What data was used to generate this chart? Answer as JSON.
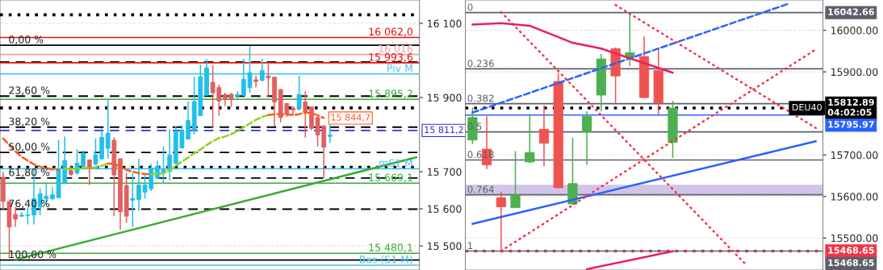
{
  "chart_data": [
    {
      "type": "candlestick",
      "categories": [
        null,
        null,
        null,
        null,
        null,
        null,
        null,
        null,
        null,
        null,
        null,
        null,
        null,
        null,
        null,
        null,
        null,
        null,
        null,
        null,
        null,
        null,
        null,
        null,
        null,
        null,
        null,
        null,
        null,
        null,
        null,
        null,
        null,
        null,
        null,
        null,
        null,
        null,
        null,
        null,
        null,
        null,
        null,
        null,
        null,
        null,
        null,
        null,
        null,
        null,
        null,
        null,
        null,
        null,
        null,
        null,
        null,
        null,
        null,
        null,
        null,
        null,
        null,
        null,
        null,
        null,
        null,
        null
      ],
      "ohlc": [
        [
          15685,
          15699,
          15598,
          15620
        ],
        [
          15620,
          15620,
          15467,
          15551
        ],
        [
          15585,
          15605,
          15551,
          15572
        ],
        [
          15580,
          15591,
          15578,
          15583
        ],
        [
          15582,
          15605,
          15558,
          15584
        ],
        [
          15583,
          15706,
          15558,
          15627
        ],
        [
          15605,
          15656,
          15583,
          15641
        ],
        [
          15627,
          15667,
          15612,
          15634
        ],
        [
          15627,
          15659,
          15623,
          15638
        ],
        [
          15630,
          15786,
          15630,
          15706
        ],
        [
          15670,
          15795,
          15667,
          15730
        ],
        [
          15703,
          15714,
          15688,
          15693
        ],
        [
          15697,
          15761,
          15691,
          15723
        ],
        [
          15714,
          15757,
          15710,
          15750
        ],
        [
          15732,
          15732,
          15664,
          15708
        ],
        [
          15721,
          15790,
          15717,
          15746
        ],
        [
          15735,
          15817,
          15732,
          15793
        ],
        [
          15763,
          15893,
          15735,
          15804
        ],
        [
          15785,
          15793,
          15580,
          15691
        ],
        [
          15735,
          15735,
          15543,
          15592
        ],
        [
          15663,
          15696,
          15562,
          15580
        ],
        [
          15623,
          15696,
          15551,
          15628
        ],
        [
          15625,
          15735,
          15594,
          15664
        ],
        [
          15645,
          15696,
          15627,
          15664
        ],
        [
          15654,
          15721,
          15648,
          15710
        ],
        [
          15683,
          15730,
          15681,
          15714
        ],
        [
          15696,
          15768,
          15667,
          15706
        ],
        [
          15701,
          15815,
          15677,
          15745
        ],
        [
          15723,
          15822,
          15721,
          15810
        ],
        [
          15764,
          15826,
          15763,
          15812
        ],
        [
          15788,
          15889,
          15786,
          15838
        ],
        [
          15812,
          15956,
          15801,
          15889
        ],
        [
          15851,
          15989,
          15851,
          15956
        ],
        [
          15906,
          16004,
          15904,
          15980
        ],
        [
          15941,
          15987,
          15817,
          15913
        ],
        [
          15927,
          15935,
          15851,
          15891
        ],
        [
          15908,
          15913,
          15877,
          15896
        ],
        [
          15909,
          15913,
          15875,
          15896
        ],
        [
          15904,
          15918,
          15896,
          15908
        ],
        [
          15906,
          16005,
          15904,
          15949
        ],
        [
          15927,
          16040,
          15913,
          15967
        ],
        [
          15948,
          15959,
          15927,
          15943
        ],
        [
          15946,
          16004,
          15944,
          15973
        ],
        [
          15958,
          15995,
          15902,
          15953
        ],
        [
          15955,
          15955,
          15822,
          15888
        ],
        [
          15922,
          15922,
          15833,
          15846
        ],
        [
          15884,
          15884,
          15848,
          15855
        ],
        [
          15872,
          15877,
          15851,
          15866
        ],
        [
          15870,
          15959,
          15867,
          15908
        ],
        [
          15888,
          15917,
          15792,
          15860
        ],
        [
          15875,
          15875,
          15812,
          15817
        ],
        [
          15846,
          15848,
          15768,
          15799
        ],
        [
          15824,
          15824,
          15683,
          15766
        ],
        [
          15795,
          15828,
          15778,
          15799
        ],
        null,
        null,
        null,
        null,
        null,
        null,
        null,
        null,
        null,
        null,
        null,
        null,
        null,
        null
      ],
      "colors": [
        "#e06060",
        "#e06060",
        "#e06060",
        "#22bfe8",
        "#22bfe8",
        "#22bfe8",
        "#22bfe8",
        "#22bfe8",
        "#22bfe8",
        "#22bfe8",
        "#22bfe8",
        "#e06060",
        "#22bfe8",
        "#22bfe8",
        "#e06060",
        "#22bfe8",
        "#22bfe8",
        "#22bfe8",
        "#e06060",
        "#e06060",
        "#e06060",
        "#22bfe8",
        "#22bfe8",
        "#22bfe8",
        "#22bfe8",
        "#22bfe8",
        "#22bfe8",
        "#22bfe8",
        "#22bfe8",
        "#22bfe8",
        "#22bfe8",
        "#22bfe8",
        "#22bfe8",
        "#22bfe8",
        "#e06060",
        "#e06060",
        "#e06060",
        "#e06060",
        "#22bfe8",
        "#22bfe8",
        "#22bfe8",
        "#e06060",
        "#22bfe8",
        "#e06060",
        "#e06060",
        "#e06060",
        "#e06060",
        "#e06060",
        "#22bfe8",
        "#e06060",
        "#e06060",
        "#e06060",
        "#e06060",
        "#22bfe8",
        null,
        null,
        null,
        null,
        null,
        null,
        null,
        null,
        null,
        null,
        null,
        null,
        null,
        null
      ],
      "series": [
        {
          "type": "line",
          "color": "#ff5a1f",
          "line_style": "dashed",
          "values": [
            15790,
            15772,
            15755,
            15740,
            15730,
            15720,
            15714,
            15710,
            15706,
            15705,
            null,
            null,
            null,
            null,
            null,
            null,
            null,
            null,
            null,
            null,
            null,
            null,
            null,
            null,
            null,
            null,
            null,
            null,
            null,
            null,
            null,
            null,
            null,
            null,
            null,
            null,
            null,
            null,
            null,
            null,
            null,
            null,
            null,
            null,
            null,
            null,
            null,
            null,
            null,
            null,
            null,
            null,
            null,
            null,
            null,
            null,
            null,
            null,
            null,
            null,
            null,
            null,
            null,
            null,
            null,
            null,
            null,
            null
          ]
        },
        {
          "type": "line",
          "color": "#8fd11f",
          "line_style": "dashed",
          "values": [
            null,
            null,
            null,
            null,
            null,
            null,
            null,
            null,
            null,
            null,
            15707,
            15708,
            15709,
            15710,
            15710,
            15712,
            15716,
            15722,
            null,
            null,
            null,
            null,
            null,
            null,
            null,
            null,
            null,
            null,
            null,
            null,
            null,
            null,
            null,
            null,
            null,
            null,
            null,
            null,
            null,
            null,
            null,
            null,
            null,
            null,
            null,
            null,
            null,
            null,
            null,
            null,
            null,
            null,
            null,
            null,
            null,
            null,
            null,
            null,
            null,
            null,
            null,
            null,
            null,
            null,
            null,
            null,
            null,
            null
          ]
        },
        {
          "type": "line",
          "color": "#ff5a1f",
          "line_style": "dashed",
          "values": [
            null,
            null,
            null,
            null,
            null,
            null,
            null,
            null,
            null,
            null,
            null,
            null,
            null,
            null,
            null,
            null,
            null,
            15722,
            15722,
            15715,
            15705,
            15700,
            15696,
            15694,
            15693,
            null,
            null,
            null,
            null,
            null,
            null,
            null,
            null,
            null,
            null,
            null,
            null,
            null,
            null,
            null,
            null,
            null,
            null,
            null,
            null,
            null,
            null,
            null,
            null,
            null,
            null,
            null,
            null,
            null,
            null,
            null,
            null,
            null,
            null,
            null,
            null,
            null,
            null,
            null,
            null,
            null,
            null,
            null
          ]
        },
        {
          "type": "line",
          "color": "#8fd11f",
          "line_style": "dashed",
          "values": [
            null,
            null,
            null,
            null,
            null,
            null,
            null,
            null,
            null,
            null,
            null,
            null,
            null,
            null,
            null,
            null,
            null,
            null,
            null,
            null,
            null,
            null,
            null,
            null,
            15693,
            15694,
            15696,
            15705,
            15716,
            15728,
            15738,
            15750,
            15760,
            15772,
            15782,
            15791,
            15795,
            15801,
            15810,
            15820,
            15830,
            15840,
            15848,
            15853,
            null,
            null,
            null,
            null,
            null,
            null,
            null,
            null,
            null,
            null,
            null,
            null,
            null,
            null,
            null,
            null,
            null,
            null,
            null,
            null,
            null,
            null,
            null,
            null
          ]
        },
        {
          "type": "line",
          "color": "#ff5a1f",
          "line_style": "dashed",
          "values": [
            null,
            null,
            null,
            null,
            null,
            null,
            null,
            null,
            null,
            null,
            null,
            null,
            null,
            null,
            null,
            null,
            null,
            null,
            null,
            null,
            null,
            null,
            null,
            null,
            null,
            null,
            null,
            null,
            null,
            null,
            null,
            null,
            null,
            null,
            null,
            null,
            null,
            null,
            null,
            null,
            null,
            null,
            null,
            15853,
            15855,
            15855,
            15854,
            15853,
            15855,
            15860,
            15858,
            15852,
            15844.7,
            null,
            null,
            null,
            null,
            null,
            null,
            null,
            null,
            null,
            null,
            null,
            null,
            null,
            null,
            null
          ],
          "value_labels": [
            null,
            null,
            null,
            null,
            null,
            null,
            null,
            null,
            null,
            null,
            null,
            null,
            null,
            null,
            null,
            null,
            null,
            null,
            null,
            null,
            null,
            null,
            null,
            null,
            null,
            null,
            null,
            null,
            null,
            null,
            null,
            null,
            null,
            null,
            null,
            null,
            null,
            null,
            null,
            null,
            null,
            null,
            null,
            null,
            null,
            null,
            null,
            null,
            null,
            null,
            null,
            null,
            "15 844,7",
            null,
            null,
            null,
            null,
            null,
            null,
            null,
            null,
            null,
            null,
            null,
            null,
            null,
            null,
            null
          ]
        },
        {
          "type": "line",
          "color": "#3aaa35",
          "line_style": "solid",
          "values": [
            null,
            null,
            15463,
            null,
            null,
            null,
            null,
            null,
            null,
            null,
            null,
            null,
            null,
            null,
            null,
            null,
            null,
            null,
            null,
            null,
            null,
            null,
            null,
            null,
            null,
            null,
            null,
            null,
            null,
            null,
            null,
            null,
            null,
            null,
            null,
            null,
            null,
            null,
            null,
            null,
            null,
            null,
            null,
            null,
            null,
            null,
            null,
            null,
            null,
            null,
            null,
            null,
            null,
            null,
            null,
            null,
            null,
            null,
            null,
            null,
            null,
            null,
            null,
            null,
            null,
            null,
            null,
            15739
          ]
        }
      ],
      "ref_lines": [
        {
          "axis": "y",
          "value": 16123,
          "color": "#000000",
          "line_style": "dotted"
        },
        {
          "axis": "y",
          "value": 16062,
          "label": "16 062,0",
          "color": "#e81010",
          "line_style": "solid"
        },
        {
          "axis": "y",
          "value": 16041,
          "color": "#000000",
          "line_style": "solid"
        },
        {
          "axis": "y",
          "value": 16016,
          "label": "16 016",
          "color": "#f0a0a0",
          "line_style": "solid"
        },
        {
          "axis": "y",
          "value": 15996,
          "color": "#000000",
          "line_style": "dashed"
        },
        {
          "axis": "y",
          "value": 15993.6,
          "label": "15 993,6",
          "color": "#e81010",
          "line_style": "solid"
        },
        {
          "axis": "y",
          "value": 15964,
          "label": "Piv M",
          "color": "#4cc3f0",
          "line_style": "solid"
        },
        {
          "axis": "y",
          "value": 15904,
          "color": "#000000",
          "line_style": "dashed"
        },
        {
          "axis": "y",
          "value": 15895.2,
          "label": "15 895,2",
          "color": "#3aaa35",
          "line_style": "solid"
        },
        {
          "axis": "y",
          "value": 15872,
          "color": "#000000",
          "line_style": "dotted"
        },
        {
          "axis": "y",
          "value": 15820,
          "color": "#000000",
          "line_style": "dashed"
        },
        {
          "axis": "y",
          "value": 15811.2,
          "label": "15 811,2",
          "color": "#3030d0",
          "line_style": "dashed"
        },
        {
          "axis": "y",
          "value": 15752,
          "color": "#000000",
          "line_style": "dashed"
        },
        {
          "axis": "y",
          "value": 15712,
          "color": "#000000",
          "line_style": "dotted"
        },
        {
          "axis": "y",
          "value": 15708,
          "label": "mS1 M",
          "color": "#4cc3f0",
          "line_style": "solid"
        },
        {
          "axis": "y",
          "value": 15683,
          "color": "#000000",
          "line_style": "dashed"
        },
        {
          "axis": "y",
          "value": 15669.1,
          "label": "15 669,1",
          "color": "#3aaa35",
          "line_style": "solid"
        },
        {
          "axis": "y",
          "value": 15599,
          "color": "#000000",
          "line_style": "dashed"
        },
        {
          "axis": "y",
          "value": 15480.1,
          "label": "15 480,1",
          "color": "#3aaa35",
          "line_style": "solid"
        },
        {
          "axis": "y",
          "value": 15462,
          "color": "#000000",
          "line_style": "solid"
        },
        {
          "axis": "y",
          "value": 15448,
          "label": "Bas (S1 M)",
          "color": "#4cc3f0",
          "line_style": "solid"
        }
      ],
      "annotations": [
        {
          "text": "0,00 %",
          "y": 16041
        },
        {
          "text": "23,60 %",
          "y": 15904
        },
        {
          "text": "38,20 %",
          "y": 15820
        },
        {
          "text": "50,00 %",
          "y": 15752
        },
        {
          "text": "61,80 %",
          "y": 15683
        },
        {
          "text": "76,40 %",
          "y": 15599
        },
        {
          "text": "100,00 %",
          "y": 15462
        }
      ],
      "ylim": [
        15435,
        16163
      ],
      "yticks": [
        {
          "value": 15500,
          "label": "15 500"
        },
        {
          "value": 15600,
          "label": "15 600"
        },
        {
          "value": 15700,
          "label": "15 700"
        },
        {
          "value": 15900,
          "label": "15 900"
        },
        {
          "value": 16100,
          "label": "16 100"
        }
      ],
      "tick_labels": "y",
      "grid": "y"
    },
    {
      "type": "candlestick",
      "categories": [
        null,
        null,
        null,
        null,
        null,
        null,
        null,
        null,
        null,
        null,
        null,
        null,
        null,
        null,
        null,
        null,
        null,
        null,
        null,
        null,
        null,
        null,
        null,
        null,
        null
      ],
      "ohlc": [
        [
          15736,
          15814,
          15726,
          15790
        ],
        [
          15714,
          15793,
          15666,
          15676
        ],
        [
          15597,
          15612,
          15468.65,
          15575
        ],
        [
          15573,
          15709,
          15573,
          15604
        ],
        [
          15683,
          15799,
          15680,
          15706
        ],
        [
          15762,
          15820,
          15673,
          15728
        ],
        [
          15877,
          15897,
          15620,
          15621
        ],
        [
          15582,
          15741,
          15580,
          15631
        ],
        [
          15756,
          15805,
          15676,
          15793
        ],
        [
          15844,
          15943,
          15805,
          15931
        ],
        [
          15956,
          15959,
          15825,
          15890
        ],
        [
          15935,
          16042.66,
          15914,
          15946
        ],
        [
          15937,
          15985,
          15838,
          15838
        ],
        [
          15903,
          15959,
          15798,
          15825
        ],
        [
          15730,
          15830,
          15693,
          15812.89
        ],
        null,
        null,
        null,
        null,
        null,
        null,
        null,
        null,
        null,
        null
      ],
      "colors": [
        "#4caf50",
        "#ef5350",
        "#ef5350",
        "#4caf50",
        "#4caf50",
        "#ef5350",
        "#ef5350",
        "#4caf50",
        "#4caf50",
        "#4caf50",
        "#ef5350",
        "#4caf50",
        "#ef5350",
        "#ef5350",
        "#4caf50",
        null,
        null,
        null,
        null,
        null,
        null,
        null,
        null,
        null,
        null
      ],
      "series": [
        {
          "type": "line",
          "color": "#2962ff",
          "line_style": "solid",
          "values": [
            15534,
            null,
            null,
            null,
            null,
            null,
            null,
            null,
            null,
            null,
            null,
            null,
            null,
            null,
            null,
            null,
            null,
            null,
            null,
            null,
            null,
            null,
            null,
            null,
            15733
          ]
        },
        {
          "type": "line",
          "color": "#2962ff",
          "line_style": "dashed",
          "values": [
            15802,
            null,
            null,
            null,
            null,
            null,
            null,
            null,
            null,
            null,
            null,
            null,
            null,
            null,
            null,
            null,
            null,
            null,
            null,
            null,
            null,
            null,
            16063,
            null,
            null
          ]
        },
        {
          "type": "line",
          "color": "#f23645",
          "line_style": "dotted",
          "values": [
            null,
            null,
            16044,
            null,
            null,
            null,
            null,
            null,
            null,
            null,
            null,
            null,
            null,
            null,
            null,
            null,
            null,
            null,
            null,
            15440,
            null,
            null,
            null,
            null,
            null
          ]
        },
        {
          "type": "line",
          "color": "#f23645",
          "line_style": "dotted",
          "values": [
            null,
            null,
            null,
            null,
            null,
            null,
            null,
            null,
            null,
            null,
            16061,
            null,
            null,
            null,
            null,
            null,
            null,
            null,
            null,
            null,
            null,
            null,
            null,
            null,
            15765
          ]
        },
        {
          "type": "line",
          "color": "#f23645",
          "line_style": "dotted",
          "values": [
            null,
            null,
            15469,
            null,
            null,
            null,
            null,
            null,
            null,
            null,
            null,
            null,
            null,
            null,
            null,
            null,
            null,
            null,
            null,
            null,
            null,
            null,
            null,
            null,
            15954
          ]
        },
        {
          "type": "line",
          "color": "#e91e63",
          "line_style": "solid",
          "values": [
            16014,
            null,
            16017,
            null,
            16011,
            null,
            null,
            15970,
            null,
            15956,
            null,
            null,
            null,
            null,
            15898,
            null,
            null,
            null,
            null,
            null,
            null,
            null,
            null,
            null,
            null
          ]
        },
        {
          "type": "line",
          "color": "#e91e63",
          "line_style": "solid",
          "values": [
            null,
            null,
            null,
            null,
            null,
            null,
            null,
            null,
            15425,
            null,
            null,
            null,
            null,
            null,
            15468,
            null,
            null,
            null,
            null,
            null,
            null,
            null,
            null,
            null,
            null
          ]
        }
      ],
      "ref_lines": [
        {
          "axis": "y",
          "value": 16042.66,
          "label": "16042.66",
          "color": "#5d606b",
          "line_style": "solid"
        },
        {
          "axis": "y",
          "value": 15907.19,
          "color": "#5d606b",
          "line_style": "solid"
        },
        {
          "axis": "y",
          "value": 15823.39,
          "color": "#5d606b",
          "line_style": "solid"
        },
        {
          "axis": "y",
          "value": 15755.66,
          "color": "#5d606b",
          "line_style": "solid"
        },
        {
          "axis": "y",
          "value": 15687.93,
          "color": "#5d606b",
          "line_style": "solid"
        },
        {
          "axis": "y",
          "value": 15604.12,
          "color": "#5d606b",
          "line_style": "solid"
        },
        {
          "axis": "y",
          "value": 15812.89,
          "label": "15812.89\n04:02:05",
          "color": "#000000",
          "line_style": "dotted"
        },
        {
          "axis": "y",
          "value": 15795.97,
          "label": "15795.97",
          "color": "#2962ff",
          "line_style": "solid"
        },
        {
          "axis": "y",
          "value": 15468.65,
          "label": "15468.65",
          "color": "#f23645",
          "line_style": "dotted"
        },
        {
          "axis": "y",
          "value": 15468.65,
          "label": "15468.65",
          "color": "#5d606b",
          "line_style": "solid"
        }
      ],
      "bands": [
        {
          "axis": "y",
          "from": 15604.12,
          "to": 15628,
          "color": "#d1c4e9"
        }
      ],
      "annotations": [
        {
          "text": "0",
          "y": 16042.66
        },
        {
          "text": "0.236",
          "y": 15907.19
        },
        {
          "text": "0.382",
          "y": 15823.39
        },
        {
          "text": "0.5",
          "y": 15755.66
        },
        {
          "text": "0.618",
          "y": 15687.93
        },
        {
          "text": "0.764",
          "y": 15604.12
        },
        {
          "text": "1",
          "y": 15468.65
        },
        {
          "text": "DEU40",
          "y": 15812.89
        }
      ],
      "ylim": [
        15423,
        16073
      ],
      "yticks": [
        {
          "value": 15500,
          "label": "15500.00"
        },
        {
          "value": 15600,
          "label": "15600.00"
        },
        {
          "value": 15700,
          "label": "15700.00"
        },
        {
          "value": 15900,
          "label": "15900.00"
        },
        {
          "value": 16000,
          "label": "16000.00"
        }
      ],
      "tick_labels": "y",
      "grid": "y"
    }
  ]
}
